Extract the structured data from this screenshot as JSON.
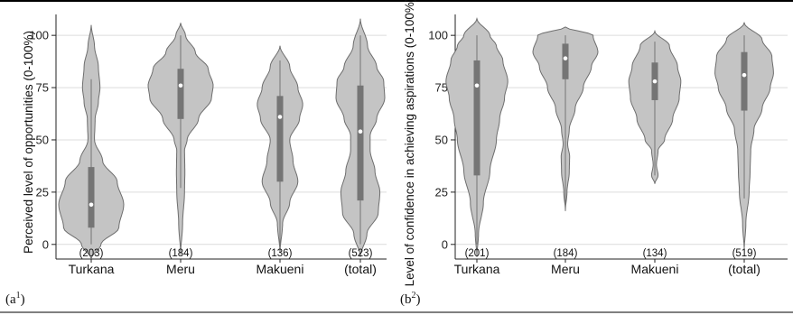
{
  "colors": {
    "violin": "#c4c4c4",
    "outline": "#6e6e6e",
    "box": "#757575",
    "median": "#ffffff",
    "grid": "#dcdcdc"
  },
  "panels": [
    {
      "label": "(a",
      "label_sup": "1",
      "label_close": ")"
    },
    {
      "label": "(b",
      "label_sup": "2",
      "label_close": ")"
    }
  ],
  "chart_data": [
    {
      "type": "violin",
      "ylabel": "Perceived level of opportunities (0-100%)",
      "ylim": [
        -7,
        110
      ],
      "yticks": [
        0,
        25,
        50,
        75,
        100
      ],
      "grid": true,
      "categories": [
        "Turkana",
        "Meru",
        "Makueni",
        "(total)"
      ],
      "counts": [
        "(203)",
        "(184)",
        "(136)",
        "(523)"
      ],
      "series": [
        {
          "category": "Turkana",
          "median": 19,
          "q1": 8,
          "q3": 37,
          "whisker_low": 0,
          "whisker_high": 79,
          "density_y": [
            -7,
            0,
            8,
            19,
            30,
            40,
            50,
            60,
            68,
            75,
            85,
            95,
            105
          ],
          "density_w": [
            0,
            0.3,
            0.85,
            1.0,
            0.8,
            0.35,
            0.1,
            0.12,
            0.22,
            0.27,
            0.22,
            0.1,
            0
          ]
        },
        {
          "category": "Meru",
          "median": 76,
          "q1": 60,
          "q3": 84,
          "whisker_low": 27,
          "whisker_high": 100,
          "density_y": [
            -5,
            10,
            25,
            35,
            45,
            50,
            60,
            70,
            76,
            84,
            92,
            100,
            106
          ],
          "density_w": [
            0,
            0.06,
            0.12,
            0.13,
            0.12,
            0.2,
            0.55,
            0.95,
            1.0,
            0.85,
            0.45,
            0.15,
            0
          ]
        },
        {
          "category": "Makueni",
          "median": 61,
          "q1": 30,
          "q3": 71,
          "whisker_low": 0,
          "whisker_high": 88,
          "density_y": [
            -4,
            10,
            20,
            30,
            40,
            50,
            60,
            67,
            75,
            85,
            95
          ],
          "density_w": [
            0,
            0.08,
            0.3,
            0.55,
            0.4,
            0.3,
            0.6,
            0.7,
            0.55,
            0.3,
            0
          ]
        },
        {
          "category": "(total)",
          "median": 54,
          "q1": 21,
          "q3": 76,
          "whisker_low": 0,
          "whisker_high": 100,
          "density_y": [
            -6,
            5,
            15,
            25,
            35,
            45,
            52,
            60,
            70,
            78,
            85,
            95,
            108
          ],
          "density_w": [
            0,
            0.2,
            0.55,
            0.6,
            0.45,
            0.3,
            0.3,
            0.5,
            0.75,
            0.72,
            0.5,
            0.22,
            0
          ]
        }
      ]
    },
    {
      "type": "violin",
      "ylabel": "Level of confidence in achieving aspirations (0-100%)",
      "ylim": [
        -7,
        110
      ],
      "yticks": [
        0,
        25,
        50,
        75,
        100
      ],
      "grid": true,
      "categories": [
        "Turkana",
        "Meru",
        "Makueni",
        "(total)"
      ],
      "counts": [
        "(201)",
        "(184)",
        "(134)",
        "(519)"
      ],
      "series": [
        {
          "category": "Turkana",
          "median": 76,
          "q1": 33,
          "q3": 88,
          "whisker_low": 0,
          "whisker_high": 100,
          "density_y": [
            -6,
            5,
            20,
            35,
            50,
            60,
            70,
            78,
            88,
            95,
            100,
            108
          ],
          "density_w": [
            0,
            0.05,
            0.2,
            0.4,
            0.6,
            0.7,
            0.85,
            0.95,
            0.8,
            0.6,
            0.4,
            0
          ]
        },
        {
          "category": "Meru",
          "median": 89,
          "q1": 79,
          "q3": 96,
          "whisker_low": 16,
          "whisker_high": 100,
          "density_y": [
            16,
            25,
            35,
            42,
            48,
            55,
            65,
            75,
            85,
            92,
            100,
            104
          ],
          "density_w": [
            0,
            0.05,
            0.12,
            0.13,
            0.07,
            0.12,
            0.3,
            0.55,
            0.8,
            1.0,
            0.85,
            0
          ]
        },
        {
          "category": "Makueni",
          "median": 78,
          "q1": 69,
          "q3": 87,
          "whisker_low": 33,
          "whisker_high": 97,
          "density_y": [
            29,
            33,
            38,
            45,
            50,
            60,
            70,
            78,
            85,
            95,
            102
          ],
          "density_w": [
            0,
            0.1,
            0.05,
            0.1,
            0.3,
            0.55,
            0.75,
            0.8,
            0.7,
            0.45,
            0
          ]
        },
        {
          "category": "(total)",
          "median": 81,
          "q1": 64,
          "q3": 92,
          "whisker_low": 22,
          "whisker_high": 100,
          "density_y": [
            -3,
            10,
            25,
            35,
            45,
            55,
            65,
            75,
            82,
            90,
            98,
            106
          ],
          "density_w": [
            0,
            0.05,
            0.15,
            0.18,
            0.2,
            0.3,
            0.55,
            0.8,
            0.9,
            0.85,
            0.55,
            0
          ]
        }
      ]
    }
  ]
}
